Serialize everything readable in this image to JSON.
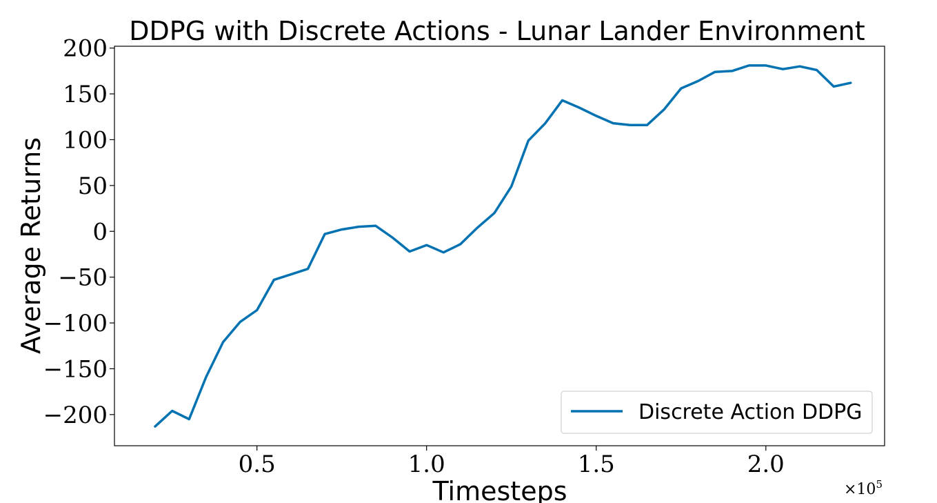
{
  "chart_data": {
    "type": "line",
    "title": "DDPG with Discrete Actions - Lunar Lander Environment",
    "xlabel": "Timesteps",
    "ylabel": "Average Returns",
    "x_multiplier": {
      "base": "×10",
      "exponent": "5"
    },
    "xlim": [
      0.08,
      2.35
    ],
    "ylim": [
      -234,
      202
    ],
    "x_ticks": [
      0.5,
      1.0,
      1.5,
      2.0
    ],
    "x_tick_labels": [
      "0.5",
      "1.0",
      "1.5",
      "2.0"
    ],
    "y_ticks": [
      200,
      150,
      100,
      50,
      0,
      -50,
      -100,
      -150,
      -200
    ],
    "y_tick_labels": [
      "200",
      "150",
      "100",
      "50",
      "0",
      "−50",
      "−100",
      "−150",
      "−200"
    ],
    "grid": false,
    "legend_position": "bottom-right",
    "series": [
      {
        "name": "Discrete Action DDPG",
        "color": "#0072b2",
        "x": [
          0.2,
          0.25,
          0.3,
          0.35,
          0.4,
          0.45,
          0.5,
          0.55,
          0.6,
          0.65,
          0.7,
          0.75,
          0.8,
          0.85,
          0.9,
          0.95,
          1.0,
          1.05,
          1.1,
          1.15,
          1.2,
          1.25,
          1.3,
          1.35,
          1.4,
          1.45,
          1.5,
          1.55,
          1.6,
          1.65,
          1.7,
          1.75,
          1.8,
          1.85,
          1.9,
          1.95,
          2.0,
          2.05,
          2.1,
          2.15,
          2.2,
          2.25
        ],
        "y": [
          -213,
          -196,
          -205,
          -159,
          -121,
          -99,
          -86,
          -53,
          -47,
          -41,
          -3,
          2,
          5,
          6,
          -7,
          -22,
          -15,
          -23,
          -14,
          4,
          20,
          49,
          99,
          118,
          143,
          135,
          126,
          118,
          116,
          116,
          133,
          156,
          164,
          174,
          175,
          181,
          181,
          177,
          180,
          176,
          158,
          162
        ]
      }
    ]
  }
}
